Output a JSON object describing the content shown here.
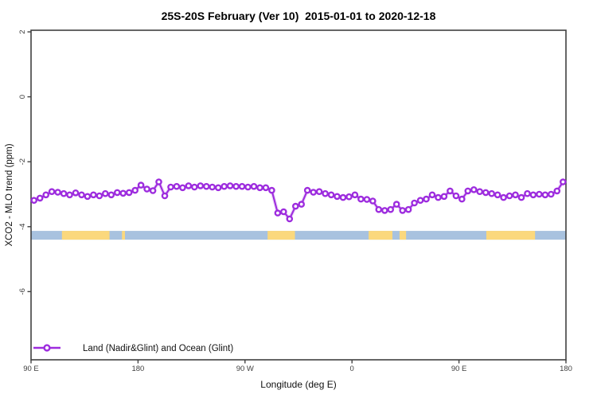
{
  "title": "25S-20S February (Ver 10)  2015-01-01 to 2020-12-18",
  "axes": {
    "x": {
      "title": "Longitude (deg E)",
      "range_lon": [
        90,
        540
      ],
      "ticks": [
        {
          "lon": 90,
          "label": "90 E"
        },
        {
          "lon": 180,
          "label": "180"
        },
        {
          "lon": 270,
          "label": "90 W"
        },
        {
          "lon": 360,
          "label": "0"
        },
        {
          "lon": 450,
          "label": "90 E"
        },
        {
          "lon": 540,
          "label": "180"
        }
      ]
    },
    "y": {
      "title": "XCO2 - MLO trend (ppm)",
      "range": [
        2.05,
        -8.1
      ],
      "ticks": [
        {
          "v": 2,
          "label": "2"
        },
        {
          "v": 0,
          "label": "0"
        },
        {
          "v": -2,
          "label": "-2"
        },
        {
          "v": -4,
          "label": "-4"
        },
        {
          "v": -6,
          "label": "-6"
        }
      ]
    }
  },
  "legend": {
    "label": "Land (Nadir&Glint) and Ocean (Glint)"
  },
  "colors": {
    "line": "#9D2CDE",
    "line_halo": "#DCB3F2",
    "marker_fill": "#FFFFFF",
    "ocean_band": "#A8C2DF",
    "land_band": "#FBD87D",
    "axis": "#404040",
    "tick_text": "#3F3F3F"
  },
  "chart_data": {
    "type": "line",
    "title": "25S-20S February (Ver 10)  2015-01-01 to 2020-12-18",
    "xlabel": "Longitude (deg E)",
    "ylabel": "XCO2 - MLO trend (ppm)",
    "xlim": [
      90,
      540
    ],
    "ylim": [
      -8.1,
      2.05
    ],
    "grid": false,
    "legend_position": "bottom-left-inside",
    "x_tick_labels": [
      "90 E",
      "180",
      "90 W",
      "0",
      "90 E",
      "180"
    ],
    "y_tick_values": [
      2,
      0,
      -2,
      -4,
      -6
    ],
    "x": [
      92.5,
      97.5,
      102.5,
      107.5,
      112.5,
      117.5,
      122.5,
      127.5,
      132.5,
      137.5,
      142.5,
      147.5,
      152.5,
      157.5,
      162.5,
      167.5,
      172.5,
      177.5,
      182.5,
      187.5,
      192.5,
      197.5,
      202.5,
      207.5,
      212.5,
      217.5,
      222.5,
      227.5,
      232.5,
      237.5,
      242.5,
      247.5,
      252.5,
      257.5,
      262.5,
      267.5,
      272.5,
      277.5,
      282.5,
      287.5,
      292.5,
      297.5,
      302.5,
      307.5,
      312.5,
      317.5,
      322.5,
      327.5,
      332.5,
      337.5,
      342.5,
      347.5,
      352.5,
      357.5,
      362.5,
      367.5,
      372.5,
      377.5,
      382.5,
      387.5,
      392.5,
      397.5,
      402.5,
      407.5,
      412.5,
      417.5,
      422.5,
      427.5,
      432.5,
      437.5,
      442.5,
      447.5,
      452.5,
      457.5,
      462.5,
      467.5,
      472.5,
      477.5,
      482.5,
      487.5,
      492.5,
      497.5,
      502.5,
      507.5,
      512.5,
      517.5,
      522.5,
      527.5,
      532.5,
      537.5
    ],
    "series": [
      {
        "name": "Land (Nadir&Glint) and Ocean (Glint)",
        "values": [
          -3.19,
          -3.12,
          -3.02,
          -2.92,
          -2.94,
          -2.98,
          -3.02,
          -2.96,
          -3.02,
          -3.07,
          -3.02,
          -3.05,
          -2.98,
          -3.02,
          -2.95,
          -2.97,
          -2.95,
          -2.88,
          -2.72,
          -2.84,
          -2.89,
          -2.62,
          -3.05,
          -2.78,
          -2.76,
          -2.8,
          -2.74,
          -2.78,
          -2.74,
          -2.76,
          -2.78,
          -2.8,
          -2.76,
          -2.74,
          -2.76,
          -2.76,
          -2.78,
          -2.76,
          -2.8,
          -2.8,
          -2.88,
          -3.58,
          -3.54,
          -3.76,
          -3.37,
          -3.31,
          -2.88,
          -2.94,
          -2.92,
          -2.98,
          -3.02,
          -3.07,
          -3.1,
          -3.08,
          -3.02,
          -3.15,
          -3.16,
          -3.21,
          -3.47,
          -3.5,
          -3.47,
          -3.31,
          -3.5,
          -3.47,
          -3.27,
          -3.19,
          -3.15,
          -3.02,
          -3.1,
          -3.07,
          -2.9,
          -3.05,
          -3.15,
          -2.9,
          -2.86,
          -2.92,
          -2.95,
          -2.98,
          -3.02,
          -3.1,
          -3.05,
          -3.02,
          -3.1,
          -2.98,
          -3.02,
          -3.0,
          -3.02,
          -3.0,
          -2.9,
          -2.62
        ]
      }
    ],
    "band": {
      "description": "land/ocean strip",
      "y_top": -4.13,
      "y_bottom": -4.4,
      "base": "ocean",
      "land_segments_lon": [
        [
          116,
          156
        ],
        [
          166.5,
          169
        ],
        [
          289,
          312
        ],
        [
          374,
          394
        ],
        [
          400,
          405.5
        ],
        [
          473,
          514
        ]
      ]
    }
  }
}
